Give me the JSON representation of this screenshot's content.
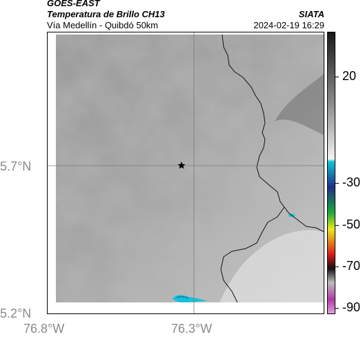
{
  "header": {
    "satellite": "GOES-EAST",
    "product": "Temperatura de Brillo CH13",
    "region": "Vía Medellín - Quibdó 50km",
    "agency": "SIATA",
    "datetime": "2024-02-19 16:29"
  },
  "map": {
    "y_ticks": [
      "5.7°N",
      "5.2°N"
    ],
    "x_ticks": [
      "76.8°W",
      "76.3°W"
    ],
    "grid": true,
    "marker": "star",
    "cloud_tones": "grayscale"
  },
  "colorbar": {
    "labels": [
      "20",
      "-30",
      "-50",
      "-70",
      "-90"
    ],
    "colors": {
      "warm_top": "#1a1a1a",
      "cool": "#f2f2f2",
      "cyan": "#12c3d6",
      "blue": "#1f2f8c",
      "green": "#19a83a",
      "yellow": "#e8e81a",
      "red": "#e01a1a",
      "black": "#111111",
      "magenta": "#b03aa8"
    }
  }
}
